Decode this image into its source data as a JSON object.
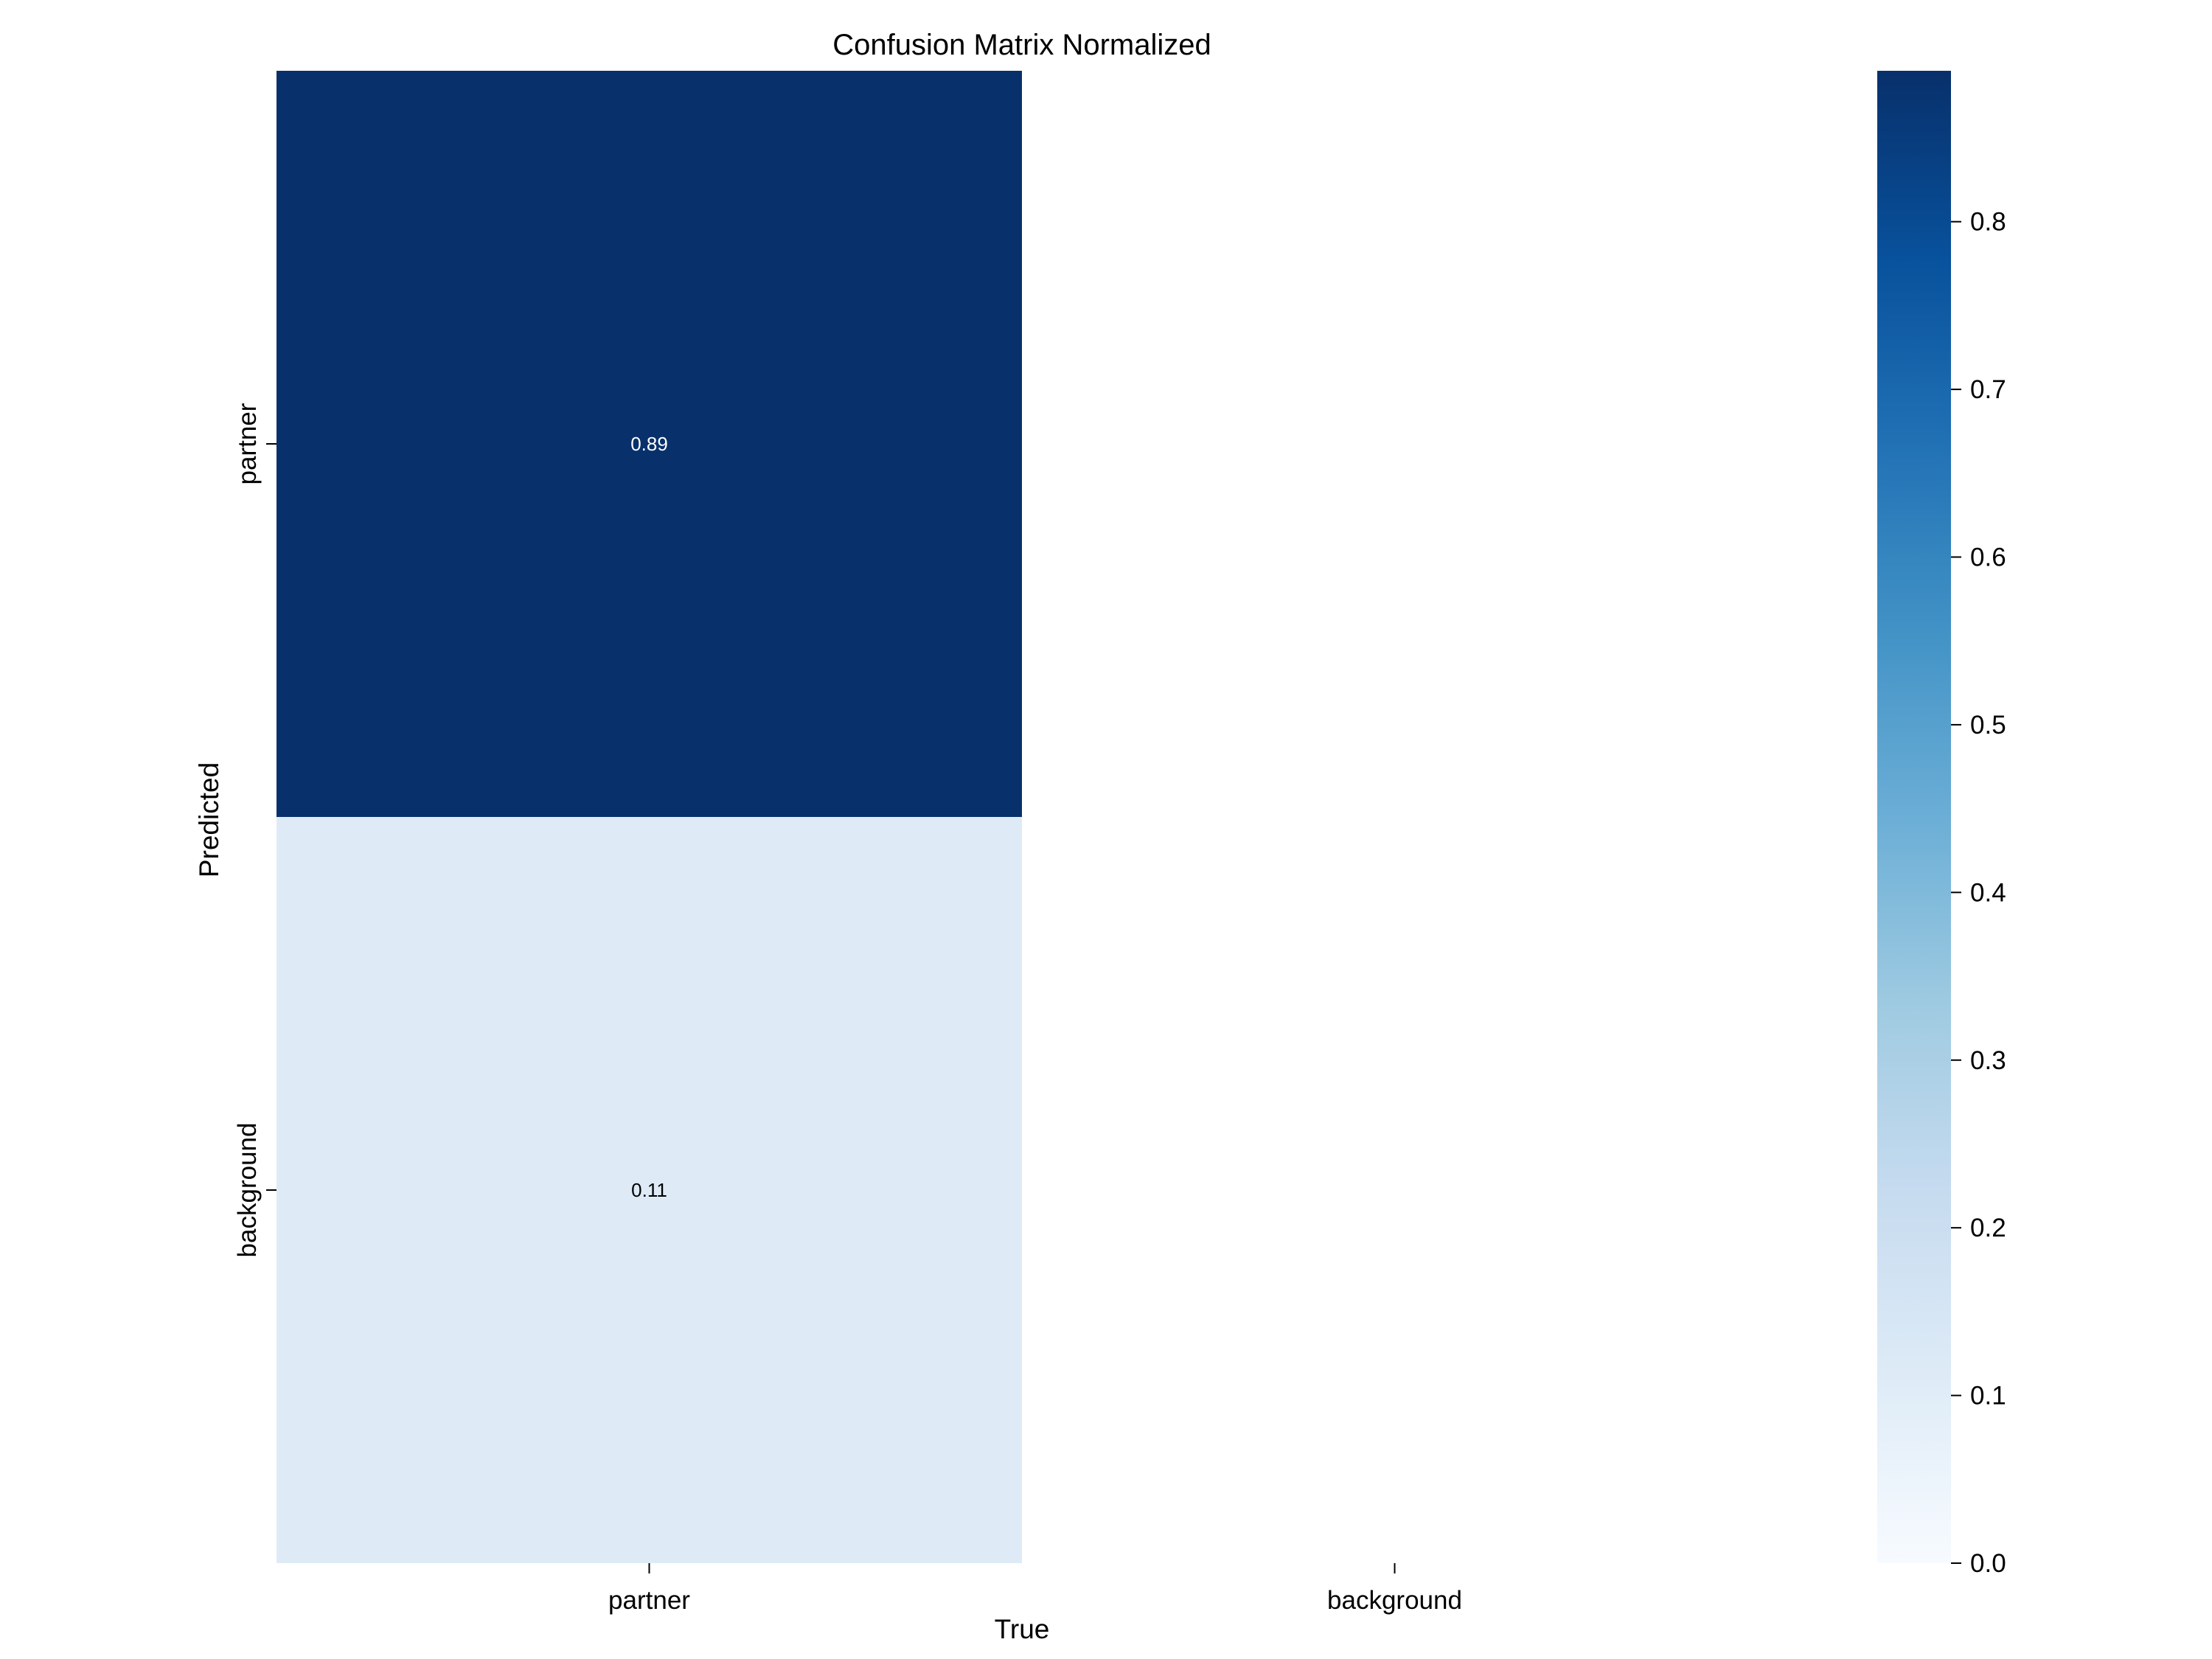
{
  "chart_data": {
    "type": "heatmap",
    "title": "Confusion Matrix Normalized",
    "xlabel": "True",
    "ylabel": "Predicted",
    "x_categories": [
      "partner",
      "background"
    ],
    "y_categories": [
      "partner",
      "background"
    ],
    "values": [
      [
        0.89,
        null
      ],
      [
        0.11,
        null
      ]
    ],
    "cell_labels": [
      [
        "0.89",
        ""
      ],
      [
        "0.11",
        ""
      ]
    ],
    "colorbar": {
      "min": 0.0,
      "max": 0.89,
      "ticks": [
        0.0,
        0.1,
        0.2,
        0.3,
        0.4,
        0.5,
        0.6,
        0.7,
        0.8
      ],
      "tick_labels": [
        "0.0",
        "0.1",
        "0.2",
        "0.3",
        "0.4",
        "0.5",
        "0.6",
        "0.7",
        "0.8"
      ],
      "colormap": "Blues"
    }
  }
}
